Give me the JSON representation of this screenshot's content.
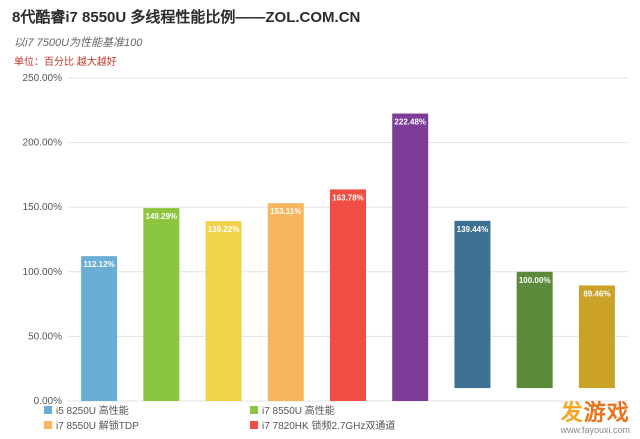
{
  "header": {
    "title": "8代酷睿i7 8550U 多线程性能比例——ZOL.COM.CN",
    "subtitle": "以i7 7500U为性能基准100",
    "unit": "单位：百分比 越大越好"
  },
  "watermark": {
    "logo_char_1": "发",
    "logo_chars_2": "游戏",
    "url": "www.fayouxi.com"
  },
  "chart_data": {
    "type": "bar",
    "ylim": [
      0,
      250
    ],
    "ytick_values": [
      0,
      50,
      100,
      150,
      200,
      250
    ],
    "ytick_labels": [
      "0.00%",
      "50.00%",
      "100.00%",
      "150.00%",
      "200.00%",
      "250.00%"
    ],
    "grid": true,
    "legend_placement": "bottom",
    "categories": [
      "i5 8250U 高性能",
      "i7 8550U 高性能",
      "",
      "i7 8550U 解锁TDP",
      "i7 7820HK 锁频2.7GHz双通道",
      "",
      "",
      "",
      ""
    ],
    "values": [
      112.12,
      149.29,
      139.22,
      153.11,
      163.78,
      222.48,
      139.44,
      100.0,
      89.46
    ],
    "value_labels": [
      "112.12%",
      "149.29%",
      "139.22%",
      "153.11%",
      "163.78%",
      "222.48%",
      "139.44%",
      "100.00%",
      "89.46%"
    ],
    "colors": [
      "#6aaed6",
      "#8cc63f",
      "#f2d24b",
      "#f9b55e",
      "#f04e45",
      "#7d3c98",
      "#3d7191",
      "#5a8a3a",
      "#c9a227"
    ],
    "legend": [
      {
        "label": "i5 8250U 高性能",
        "color": "#6aaed6"
      },
      {
        "label": "i7 8550U 高性能",
        "color": "#8cc63f"
      },
      {
        "label": "i7 8550U 解锁TDP",
        "color": "#f9b55e"
      },
      {
        "label": "i7 7820HK 锁频2.7GHz双通道",
        "color": "#f04e45"
      }
    ]
  }
}
